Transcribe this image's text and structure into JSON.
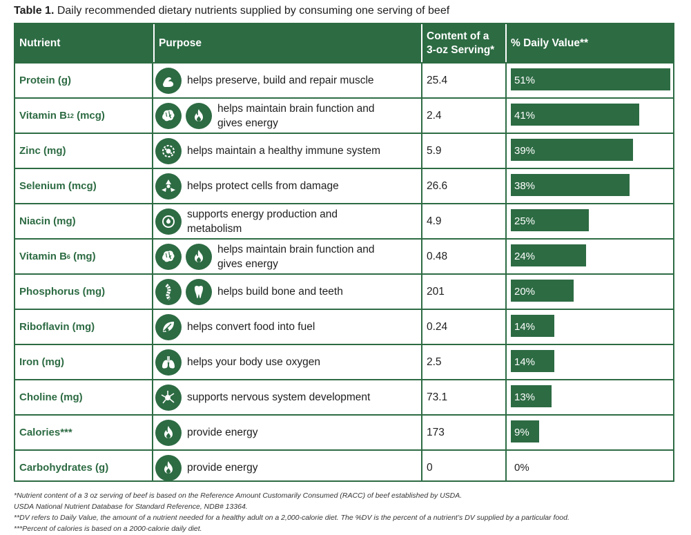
{
  "caption": {
    "label": "Table 1.",
    "text": "Daily recommended dietary nutrients supplied by consuming one serving of beef"
  },
  "header": {
    "nutrient": "Nutrient",
    "purpose": "Purpose",
    "content_line1": "Content of a",
    "content_line2": "3-oz Serving*",
    "dv": "% Daily Value**"
  },
  "accent": "#2d6b43",
  "rows": [
    {
      "name": "Protein (g)",
      "icons": [
        "muscle-icon"
      ],
      "purpose": "helps preserve, build and repair muscle",
      "content": "25.4",
      "dv_label": "51%",
      "dv": 51
    },
    {
      "name_main": "Vitamin B",
      "name_sub": "12",
      "name_tail": " (mcg)",
      "icons": [
        "brain-icon",
        "flame-icon"
      ],
      "purpose": "helps maintain brain function and gives energy",
      "content": "2.4",
      "dv_label": "41%",
      "dv": 41
    },
    {
      "name": "Zinc (mg)",
      "icons": [
        "immune-cell-icon"
      ],
      "purpose": "helps maintain a healthy immune system",
      "content": "5.9",
      "dv_label": "39%",
      "dv": 39
    },
    {
      "name": "Selenium (mcg)",
      "icons": [
        "cell-protect-icon"
      ],
      "purpose": "helps protect cells from damage",
      "content": "26.6",
      "dv_label": "38%",
      "dv": 38
    },
    {
      "name": "Niacin (mg)",
      "icons": [
        "energy-cycle-icon"
      ],
      "purpose": "supports energy production and metabolism",
      "content": "4.9",
      "dv_label": "25%",
      "dv": 25
    },
    {
      "name_main": "Vitamin B",
      "name_sub": "6",
      "name_tail": " (mg)",
      "icons": [
        "brain-icon",
        "flame-icon"
      ],
      "purpose": "helps maintain brain function and gives energy",
      "content": "0.48",
      "dv_label": "24%",
      "dv": 24
    },
    {
      "name": "Phosphorus (mg)",
      "icons": [
        "spine-icon",
        "tooth-icon"
      ],
      "purpose": "helps build bone and teeth",
      "content": "201",
      "dv_label": "20%",
      "dv": 20
    },
    {
      "name": "Riboflavin (mg)",
      "icons": [
        "leaf-fuel-icon"
      ],
      "purpose": "helps convert food into fuel",
      "content": "0.24",
      "dv_label": "14%",
      "dv": 14
    },
    {
      "name": "Iron (mg)",
      "icons": [
        "lungs-icon"
      ],
      "purpose": "helps your body use oxygen",
      "content": "2.5",
      "dv_label": "14%",
      "dv": 14
    },
    {
      "name": "Choline (mg)",
      "icons": [
        "neuron-icon"
      ],
      "purpose": "supports nervous system development",
      "content": "73.1",
      "dv_label": "13%",
      "dv": 13
    },
    {
      "name": "Calories***",
      "icons": [
        "flame-icon"
      ],
      "purpose": "provide energy",
      "content": "173",
      "dv_label": "9%",
      "dv": 9
    },
    {
      "name": "Carbohydrates (g)",
      "icons": [
        "flame-icon"
      ],
      "purpose": "provide energy",
      "content": "0",
      "dv_label": "0%",
      "dv": 0
    }
  ],
  "notes": [
    "*Nutrient content of a 3 oz serving of beef is based on the Reference Amount Customarily Consumed (RACC) of beef established by USDA.",
    "USDA National Nutrient Database for Standard Reference, NDB# 13364.",
    "**DV refers to Daily Value, the amount of a nutrient needed for a healthy adult on a 2,000-calorie diet. The %DV is the percent of a nutrient’s DV supplied by a particular food.",
    "***Percent of calories is based on a 2000-calorie daily diet."
  ]
}
